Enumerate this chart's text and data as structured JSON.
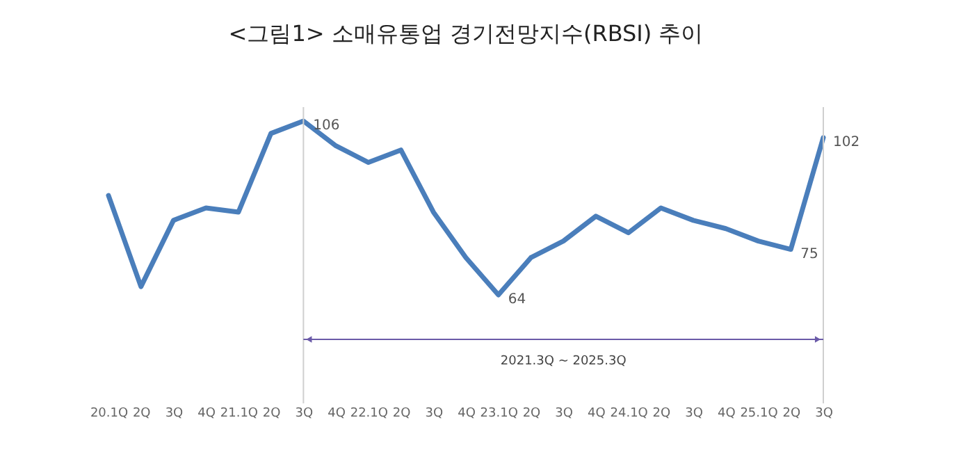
{
  "chart_data": {
    "type": "line",
    "title": "<그림1> 소매유통업 경기전망지수(RBSI) 추이",
    "categories": [
      "20.1Q",
      "2Q",
      "3Q",
      "4Q",
      "21.1Q",
      "2Q",
      "3Q",
      "4Q",
      "22.1Q",
      "2Q",
      "3Q",
      "4Q",
      "23.1Q",
      "2Q",
      "3Q",
      "4Q",
      "24.1Q",
      "2Q",
      "3Q",
      "4Q",
      "25.1Q",
      "2Q",
      "3Q"
    ],
    "series": [
      {
        "color": "#4a7ebb",
        "values": [
          88,
          66,
          82,
          85,
          84,
          103,
          106,
          100,
          96,
          99,
          84,
          73,
          64,
          73,
          77,
          83,
          79,
          85,
          82,
          80,
          77,
          75,
          102
        ],
        "value_labels": [
          null,
          null,
          null,
          null,
          null,
          null,
          "106",
          null,
          null,
          null,
          null,
          null,
          "64",
          null,
          null,
          null,
          null,
          null,
          null,
          null,
          null,
          "75",
          "102"
        ]
      }
    ],
    "tick_labels": "x",
    "marker": "none",
    "annotations": [
      "2021.3Q ~ 2025.3Q"
    ]
  }
}
